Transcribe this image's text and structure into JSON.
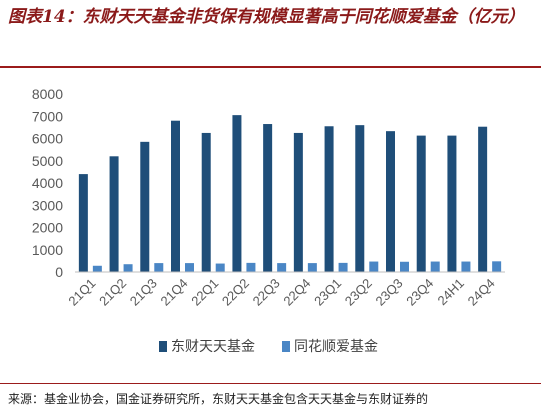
{
  "header": {
    "title": "图表14：东财天天基金非货保有规模显著高于同花顺爱基金（亿元）"
  },
  "footer": {
    "source": "来源：基金业协会，国金证券研究所，东财天天基金包含天天基金与东财证券的"
  },
  "chart_data": {
    "type": "bar",
    "categories": [
      "21Q1",
      "21Q2",
      "21Q3",
      "21Q4",
      "22Q1",
      "22Q2",
      "22Q3",
      "22Q4",
      "23Q1",
      "23Q2",
      "23Q3",
      "23Q4",
      "24H1",
      "24Q4"
    ],
    "series": [
      {
        "name": "东财天天基金",
        "color": "#1F4E79",
        "values": [
          4400,
          5200,
          5850,
          6800,
          6250,
          7050,
          6650,
          6250,
          6550,
          6600,
          6330,
          6130,
          6130,
          6530
        ]
      },
      {
        "name": "同花顺爱基金",
        "color": "#4A86C5",
        "values": [
          280,
          350,
          400,
          400,
          380,
          410,
          400,
          400,
          410,
          470,
          460,
          470,
          470,
          480
        ]
      }
    ],
    "ylim": [
      0,
      8000
    ],
    "yticks": [
      "0",
      "1000",
      "2000",
      "3000",
      "4000",
      "5000",
      "6000",
      "7000",
      "8000"
    ],
    "grid": false,
    "legend": "bottom"
  }
}
